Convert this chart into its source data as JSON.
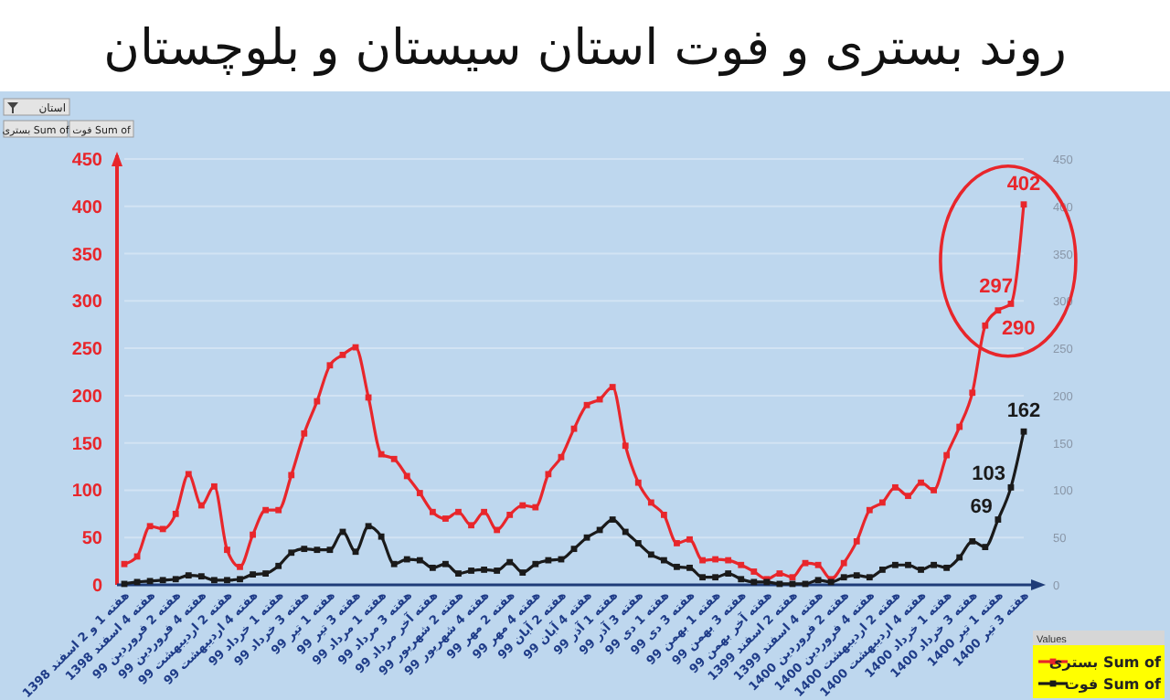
{
  "chart_data": {
    "type": "line",
    "title": "روند بستری و فوت استان سیستان و بلوچستان",
    "categories": [
      "هفته 1 و 2 اسفند 1398",
      null,
      "هفته 4 اسفند 1398",
      null,
      "هفته 2 فروردین 99",
      null,
      "هفته 4 فروردین 99",
      null,
      "هفته 2 اردیبهشت 99",
      null,
      "هفته 4 اردیبهشت 99",
      null,
      "هفته 1 خرداد 99",
      null,
      "هفته 3 خرداد 99",
      null,
      "هفته 1 تیر 99",
      null,
      "هفته 3 تیر 99",
      null,
      "هفته 1 مرداد 99",
      null,
      "هفته 3 مرداد 99",
      null,
      "هفته آخر مرداد 99",
      null,
      "هفته 2 شهریور 99",
      null,
      "هفته 4 شهریور 99",
      null,
      "هفته 2 مهر 99",
      null,
      "هفته 4 مهر 99",
      null,
      "هفته 2 آبان 99",
      null,
      "هفته 4 آبان 99",
      null,
      "هفته 1 آذر 99",
      null,
      "هفته 3 آذر 99",
      null,
      "هفته 1 دی 99",
      null,
      "هفته 3 دی 99",
      null,
      "هفته 1 بهمن 99",
      null,
      "هفته 3 بهمن 99",
      null,
      "هفته آخر بهمن 99",
      null,
      "هفته 2 اسفند 1399",
      null,
      "هفته 4 اسفند 1399",
      null,
      "هفته 2 فروردین 1400",
      null,
      "هفته 4 فروردین 1400",
      null,
      "هفته 2 اردیبهشت 1400",
      null,
      "هفته 4 اردیبهشت 1400",
      null,
      "هفته 1 خرداد 1400",
      null,
      "هفته 3 خرداد 1400",
      null,
      "هفته 1 تیر 1400",
      null,
      "هفته 3 تیر 1400"
    ],
    "series": [
      {
        "name": "Sum of بستری",
        "color": "#e8262b",
        "values": [
          22,
          30,
          62,
          59,
          75,
          117,
          84,
          104,
          37,
          19,
          53,
          79,
          79,
          116,
          160,
          194,
          232,
          243,
          251,
          198,
          138,
          133,
          115,
          97,
          77,
          70,
          77,
          63,
          77,
          58,
          74,
          84,
          82,
          117,
          135,
          165,
          190,
          196,
          209,
          147,
          108,
          87,
          74,
          44,
          48,
          26,
          27,
          26,
          21,
          14,
          6,
          12,
          8,
          23,
          21,
          6,
          23,
          46,
          79,
          87,
          103,
          94,
          108,
          100,
          137,
          167,
          203,
          274,
          290,
          297,
          402
        ],
        "value_labels": [
          null,
          null,
          null,
          null,
          null,
          null,
          null,
          null,
          null,
          null,
          null,
          null,
          null,
          null,
          null,
          null,
          null,
          null,
          null,
          null,
          null,
          null,
          null,
          null,
          null,
          null,
          null,
          null,
          null,
          null,
          null,
          null,
          null,
          null,
          null,
          null,
          null,
          null,
          null,
          null,
          null,
          null,
          null,
          null,
          null,
          null,
          null,
          null,
          null,
          null,
          null,
          null,
          null,
          null,
          null,
          null,
          null,
          null,
          null,
          null,
          null,
          null,
          null,
          null,
          null,
          null,
          null,
          null,
          "290",
          "297",
          "402"
        ]
      },
      {
        "name": "Sum of فوت",
        "color": "#1a1a1a",
        "values": [
          1,
          3,
          4,
          5,
          6,
          10,
          9,
          5,
          5,
          6,
          11,
          12,
          20,
          34,
          38,
          37,
          37,
          56,
          35,
          62,
          51,
          22,
          27,
          26,
          18,
          22,
          12,
          15,
          16,
          15,
          24,
          13,
          22,
          26,
          27,
          38,
          50,
          58,
          69,
          56,
          44,
          32,
          26,
          19,
          18,
          8,
          8,
          12,
          6,
          3,
          3,
          1,
          1,
          1,
          5,
          3,
          8,
          10,
          8,
          16,
          21,
          21,
          16,
          21,
          18,
          29,
          46,
          40,
          69,
          103,
          162
        ],
        "value_labels": [
          null,
          null,
          null,
          null,
          null,
          null,
          null,
          null,
          null,
          null,
          null,
          null,
          null,
          null,
          null,
          null,
          null,
          null,
          null,
          null,
          null,
          null,
          null,
          null,
          null,
          null,
          null,
          null,
          null,
          null,
          null,
          null,
          null,
          null,
          null,
          null,
          null,
          null,
          null,
          null,
          null,
          null,
          null,
          null,
          null,
          null,
          null,
          null,
          null,
          null,
          null,
          null,
          null,
          null,
          null,
          null,
          null,
          null,
          null,
          null,
          null,
          null,
          null,
          null,
          null,
          null,
          null,
          null,
          "69",
          "103",
          "162"
        ]
      }
    ],
    "ylim": [
      0,
      450
    ],
    "yticks": [
      0,
      50,
      100,
      150,
      200,
      250,
      300,
      350,
      400,
      450
    ],
    "y2lim": [
      0,
      450
    ],
    "y2ticks": [
      0,
      50,
      100,
      150,
      200,
      250,
      300,
      350,
      400,
      450
    ],
    "grid": "y",
    "marker": "square",
    "line_style": "solid",
    "legend": "bottom right",
    "legend_title": "Values",
    "annotations": [
      "استان",
      "Sum of بستری",
      "Sum of فوت"
    ]
  }
}
